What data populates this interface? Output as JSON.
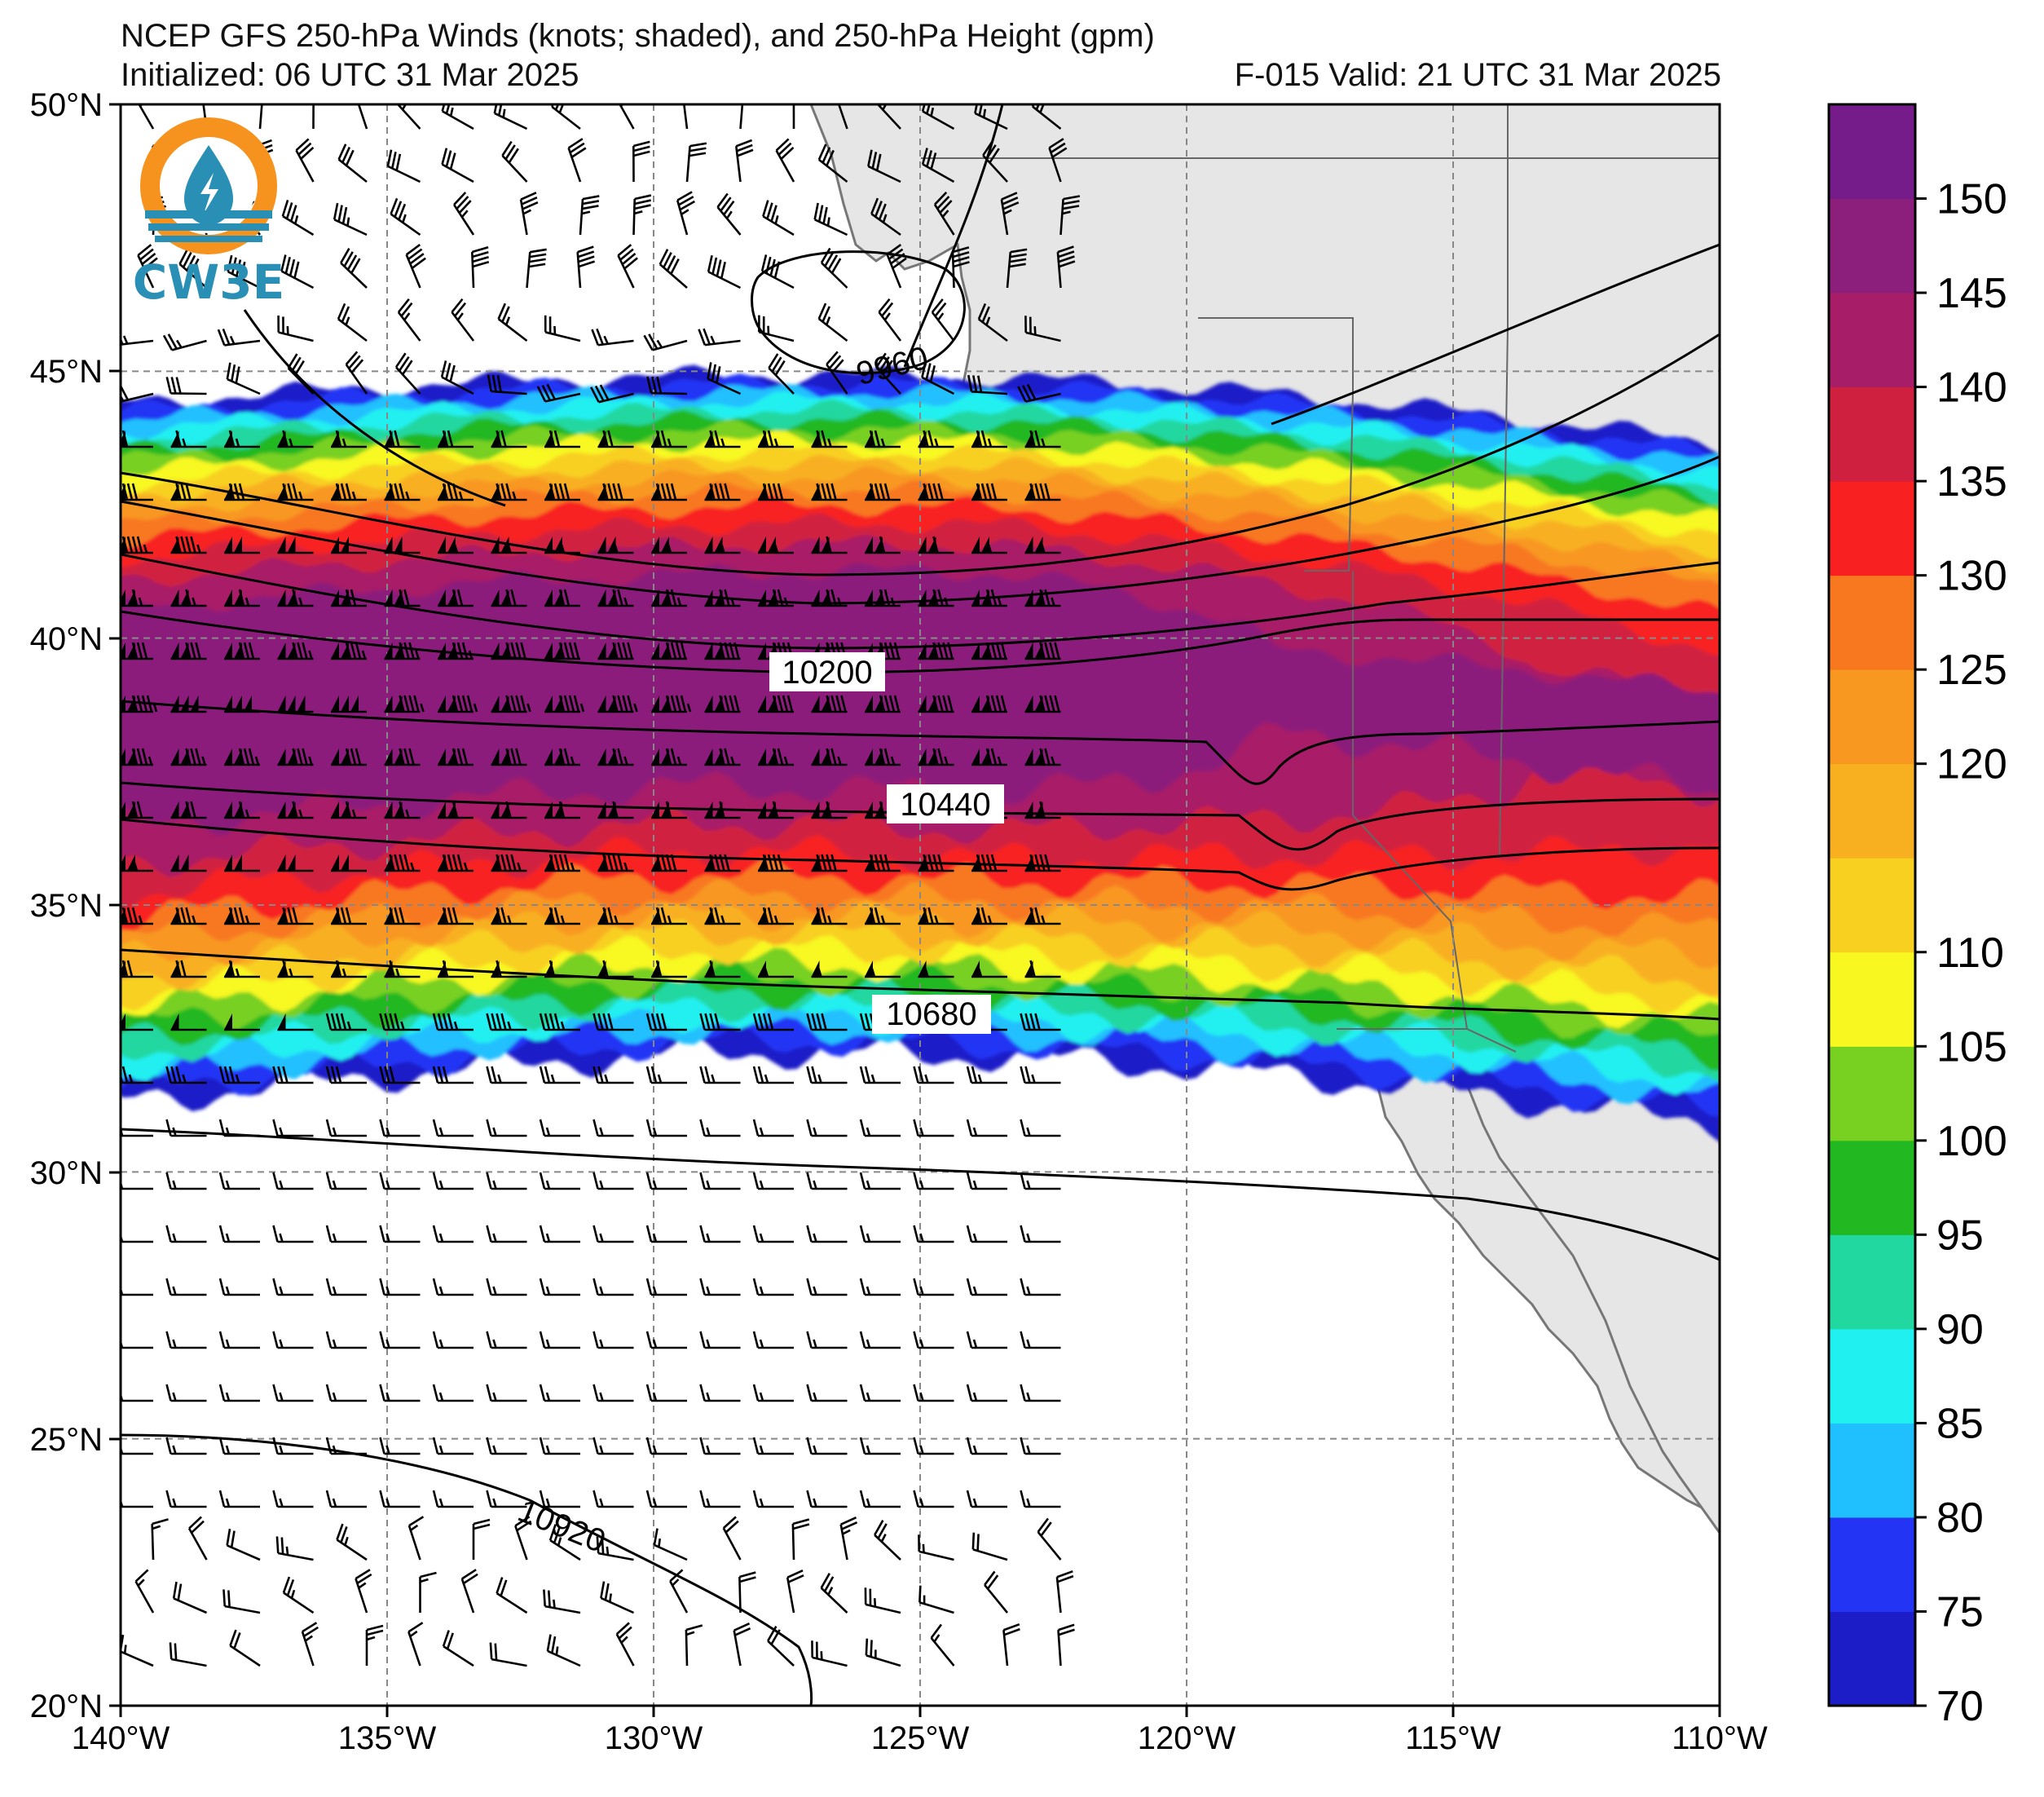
{
  "title": {
    "line1": "NCEP GFS 250-hPa Winds (knots; shaded), and 250-hPa Height (gpm)",
    "line2_left": "Initialized: 06 UTC 31 Mar 2025",
    "line2_right": "F-015  Valid: 21 UTC 31 Mar 2025"
  },
  "logo": {
    "text": "CW3E",
    "colors": {
      "ring": "#f6921e",
      "water": "#2a8fb5"
    }
  },
  "axes": {
    "lon_labels": [
      "140°W",
      "135°W",
      "130°W",
      "125°W",
      "120°W",
      "115°W",
      "110°W"
    ],
    "lat_labels": [
      "50°N",
      "45°N",
      "40°N",
      "35°N",
      "30°N",
      "25°N",
      "20°N"
    ]
  },
  "contours": {
    "labels": [
      "9960",
      "10200",
      "10440",
      "10680",
      "10920"
    ]
  },
  "colorbar": {
    "ticks": [
      "150",
      "145",
      "140",
      "135",
      "130",
      "125",
      "120",
      "110",
      "105",
      "100",
      "95",
      "90",
      "85",
      "80",
      "75",
      "70"
    ],
    "bands": [
      {
        "from": 70,
        "to": 75,
        "color": "#1d1dc8"
      },
      {
        "from": 75,
        "to": 80,
        "color": "#2434f5"
      },
      {
        "from": 80,
        "to": 85,
        "color": "#20c0ff"
      },
      {
        "from": 85,
        "to": 90,
        "color": "#20f0f0"
      },
      {
        "from": 90,
        "to": 95,
        "color": "#20d8a0"
      },
      {
        "from": 95,
        "to": 100,
        "color": "#22b822"
      },
      {
        "from": 100,
        "to": 105,
        "color": "#78d020"
      },
      {
        "from": 105,
        "to": 110,
        "color": "#f8f820"
      },
      {
        "from": 110,
        "to": 115,
        "color": "#f8d020"
      },
      {
        "from": 115,
        "to": 120,
        "color": "#f8b020"
      },
      {
        "from": 120,
        "to": 125,
        "color": "#f89820"
      },
      {
        "from": 125,
        "to": 130,
        "color": "#f87820"
      },
      {
        "from": 130,
        "to": 135,
        "color": "#f82020"
      },
      {
        "from": 135,
        "to": 140,
        "color": "#d02040"
      },
      {
        "from": 140,
        "to": 145,
        "color": "#a81d68"
      },
      {
        "from": 145,
        "to": 150,
        "color": "#8c1e7c"
      },
      {
        "from": 150,
        "to": 155,
        "color": "#761c8a"
      }
    ]
  }
}
